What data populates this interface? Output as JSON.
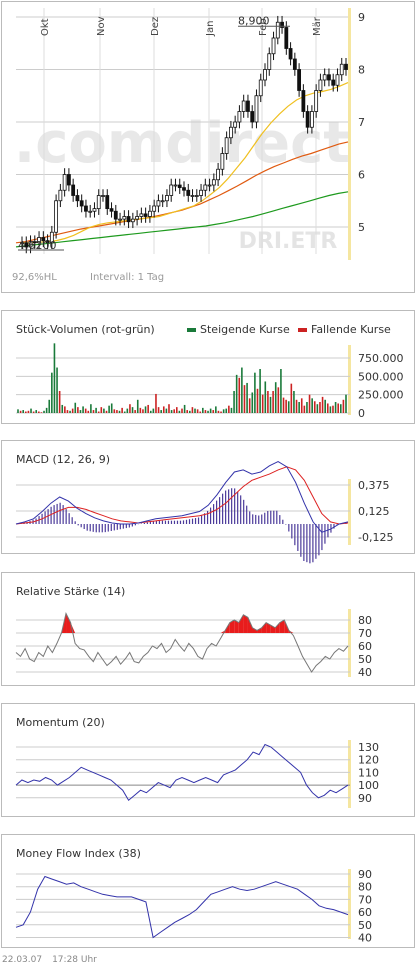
{
  "chart_data": [
    {
      "type": "candlestick",
      "months": [
        "Okt",
        "Nov",
        "Dez",
        "Jan",
        "Feb",
        "Mär"
      ],
      "ylim": [
        4.5,
        9.2
      ],
      "yticks": [
        "5",
        "6",
        "7",
        "8",
        "9"
      ],
      "watermark": ".comdirect",
      "symbol": "DRI.ETR",
      "high_label": "8,900",
      "low_label": "4,6200",
      "high_value": 8.9,
      "low_value": 4.62,
      "info_range": "92,6%HL",
      "info_interval": "Intervall: 1 Tag",
      "price": [
        4.7,
        4.62,
        4.72,
        4.7,
        4.8,
        4.74,
        4.7,
        4.9,
        5.5,
        5.7,
        6.0,
        5.8,
        5.6,
        5.5,
        5.4,
        5.3,
        5.3,
        5.35,
        5.6,
        5.6,
        5.35,
        5.3,
        5.15,
        5.15,
        5.2,
        5.1,
        5.15,
        5.2,
        5.25,
        5.2,
        5.3,
        5.4,
        5.5,
        5.5,
        5.6,
        5.8,
        5.8,
        5.75,
        5.7,
        5.6,
        5.6,
        5.6,
        5.7,
        5.8,
        5.8,
        5.9,
        6.1,
        6.4,
        6.7,
        6.9,
        7.0,
        7.2,
        7.4,
        7.2,
        7.0,
        7.5,
        7.8,
        8.0,
        8.3,
        8.6,
        8.9,
        8.8,
        8.4,
        8.2,
        8.0,
        7.6,
        7.2,
        6.9,
        7.2,
        7.6,
        7.8,
        7.9,
        7.8,
        7.7,
        7.9,
        8.1,
        8.0
      ],
      "sma38": [
        4.7,
        4.7,
        4.71,
        4.72,
        4.74,
        4.78,
        4.84,
        4.92,
        5.0,
        5.05,
        5.08,
        5.1,
        5.12,
        5.14,
        5.16,
        5.18,
        5.2,
        5.25,
        5.3,
        5.35,
        5.4,
        5.5,
        5.62,
        5.75,
        5.92,
        6.12,
        6.32,
        6.55,
        6.78,
        6.98,
        7.15,
        7.3,
        7.42,
        7.5,
        7.55,
        7.58,
        7.62,
        7.68,
        7.75
      ],
      "sma100": [
        4.7,
        4.72,
        4.76,
        4.8,
        4.84,
        4.88,
        4.92,
        4.96,
        4.99,
        5.02,
        5.05,
        5.08,
        5.11,
        5.14,
        5.17,
        5.2,
        5.24,
        5.28,
        5.32,
        5.38,
        5.44,
        5.52,
        5.6,
        5.69,
        5.78,
        5.88,
        5.98,
        6.07,
        6.15,
        6.22,
        6.29,
        6.35,
        6.4,
        6.46,
        6.52,
        6.58,
        6.62
      ],
      "sma200": [
        4.62,
        4.64,
        4.66,
        4.68,
        4.7,
        4.72,
        4.74,
        4.76,
        4.78,
        4.8,
        4.82,
        4.84,
        4.86,
        4.88,
        4.9,
        4.92,
        4.94,
        4.96,
        4.98,
        5.0,
        5.02,
        5.05,
        5.08,
        5.12,
        5.16,
        5.2,
        5.25,
        5.3,
        5.35,
        5.4,
        5.45,
        5.5,
        5.55,
        5.6,
        5.64,
        5.67
      ]
    },
    {
      "type": "bar",
      "title": "Stück-Volumen (rot-grün)",
      "legend": [
        "Steigende Kurse",
        "Fallende Kurse"
      ],
      "colors": {
        "up": "#1a7a3a",
        "down": "#cc2222"
      },
      "yticks": [
        "750.000",
        "500.000",
        "250.000",
        "0"
      ],
      "ylim": [
        0,
        1000000
      ],
      "values": [
        50000,
        30000,
        40000,
        20000,
        30000,
        60000,
        20000,
        40000,
        20000,
        10000,
        30000,
        70000,
        180000,
        550000,
        950000,
        620000,
        300000,
        110000,
        90000,
        40000,
        30000,
        60000,
        140000,
        80000,
        40000,
        90000,
        60000,
        30000,
        120000,
        40000,
        70000,
        20000,
        80000,
        60000,
        30000,
        100000,
        130000,
        50000,
        40000,
        30000,
        70000,
        20000,
        60000,
        120000,
        80000,
        40000,
        180000,
        70000,
        50000,
        90000,
        110000,
        30000,
        60000,
        260000,
        80000,
        40000,
        90000,
        60000,
        120000,
        40000,
        50000,
        80000,
        30000,
        60000,
        110000,
        40000,
        30000,
        80000,
        60000,
        50000,
        20000,
        70000,
        40000,
        30000,
        60000,
        40000,
        90000,
        30000,
        20000,
        50000,
        60000,
        100000,
        70000,
        300000,
        520000,
        480000,
        620000,
        380000,
        410000,
        200000,
        280000,
        550000,
        330000,
        600000,
        250000,
        430000,
        300000,
        220000,
        300000,
        420000,
        350000,
        600000,
        210000,
        180000,
        160000,
        400000,
        300000,
        180000,
        150000,
        200000,
        100000,
        150000,
        250000,
        200000,
        160000,
        120000,
        150000,
        220000,
        180000,
        130000,
        90000,
        100000,
        150000,
        130000,
        120000,
        180000,
        250000
      ],
      "ups": [
        1,
        0,
        1,
        0,
        0,
        1,
        0,
        1,
        0,
        0,
        1,
        1,
        1,
        1,
        1,
        1,
        0,
        1,
        0,
        0,
        1,
        0,
        1,
        0,
        1,
        1,
        0,
        0,
        1,
        0,
        1,
        0,
        0,
        1,
        0,
        1,
        1,
        0,
        0,
        1,
        0,
        1,
        1,
        0,
        1,
        0,
        1,
        0,
        0,
        1,
        0,
        1,
        1,
        0,
        0,
        1,
        0,
        1,
        0,
        1,
        0,
        0,
        1,
        0,
        1,
        0,
        1,
        0,
        1,
        0,
        0,
        1,
        0,
        1,
        1,
        0,
        1,
        0,
        0,
        1,
        1,
        0,
        1,
        1,
        1,
        0,
        1,
        0,
        1,
        0,
        1,
        1,
        0,
        1,
        0,
        1,
        0,
        1,
        0,
        1,
        0,
        1,
        0,
        0,
        1,
        0,
        1,
        0,
        1,
        0,
        0,
        1,
        0,
        1,
        0,
        1,
        0,
        0,
        1,
        0,
        1,
        0,
        1,
        0,
        1,
        0,
        1
      ]
    },
    {
      "type": "line",
      "title": "MACD (12, 26, 9)",
      "yticks": [
        "0,375",
        "0,125",
        "-0,125"
      ],
      "ylim": [
        -0.3,
        0.65
      ],
      "macd": [
        0.0,
        0.02,
        0.05,
        0.12,
        0.2,
        0.26,
        0.22,
        0.15,
        0.1,
        0.06,
        0.03,
        0.01,
        0.0,
        0.0,
        0.01,
        0.03,
        0.05,
        0.06,
        0.07,
        0.08,
        0.1,
        0.12,
        0.18,
        0.28,
        0.4,
        0.5,
        0.52,
        0.48,
        0.5,
        0.56,
        0.6,
        0.55,
        0.4,
        0.2,
        0.02,
        -0.08,
        -0.05,
        0.0,
        0.02
      ],
      "signal": [
        0.0,
        0.01,
        0.02,
        0.05,
        0.09,
        0.13,
        0.16,
        0.16,
        0.14,
        0.11,
        0.08,
        0.05,
        0.03,
        0.02,
        0.01,
        0.02,
        0.03,
        0.04,
        0.05,
        0.06,
        0.07,
        0.08,
        0.1,
        0.14,
        0.2,
        0.28,
        0.36,
        0.42,
        0.45,
        0.48,
        0.52,
        0.55,
        0.52,
        0.42,
        0.26,
        0.1,
        0.02,
        0.0,
        0.01
      ]
    },
    {
      "type": "line",
      "title": "Relative Stärke (14)",
      "yticks": [
        "80",
        "70",
        "60",
        "50",
        "40"
      ],
      "ylim": [
        35,
        90
      ],
      "threshold": 70,
      "values": [
        55,
        52,
        58,
        50,
        48,
        55,
        52,
        60,
        55,
        62,
        70,
        85,
        78,
        62,
        58,
        57,
        52,
        48,
        55,
        50,
        45,
        48,
        52,
        46,
        50,
        55,
        48,
        47,
        52,
        55,
        60,
        58,
        62,
        55,
        58,
        65,
        60,
        56,
        62,
        58,
        52,
        50,
        58,
        62,
        60,
        66,
        72,
        78,
        80,
        78,
        84,
        82,
        74,
        72,
        74,
        78,
        76,
        74,
        78,
        80,
        72,
        68,
        60,
        52,
        46,
        40,
        45,
        48,
        52,
        50,
        55,
        58,
        56,
        60
      ]
    },
    {
      "type": "line",
      "title": "Momentum (20)",
      "yticks": [
        "130",
        "120",
        "110",
        "100",
        "90"
      ],
      "ylim": [
        83,
        135
      ],
      "reference": 100,
      "values": [
        100,
        104,
        102,
        104,
        103,
        106,
        104,
        100,
        103,
        106,
        110,
        114,
        112,
        110,
        108,
        106,
        104,
        100,
        96,
        88,
        92,
        96,
        94,
        98,
        102,
        100,
        98,
        104,
        106,
        104,
        102,
        104,
        106,
        104,
        102,
        108,
        110,
        112,
        116,
        120,
        126,
        124,
        132,
        130,
        126,
        122,
        118,
        114,
        110,
        100,
        94,
        90,
        92,
        96,
        94,
        97,
        100
      ]
    },
    {
      "type": "line",
      "title": "Money Flow Index (38)",
      "yticks": [
        "90",
        "80",
        "70",
        "60",
        "50",
        "40"
      ],
      "ylim": [
        35,
        95
      ],
      "values": [
        48,
        50,
        60,
        78,
        88,
        86,
        84,
        82,
        83,
        80,
        78,
        76,
        74,
        73,
        72,
        72,
        72,
        70,
        68,
        40,
        44,
        48,
        52,
        55,
        58,
        62,
        68,
        74,
        76,
        78,
        80,
        78,
        77,
        78,
        80,
        82,
        84,
        82,
        80,
        78,
        74,
        70,
        65,
        63,
        62,
        60,
        58
      ]
    }
  ],
  "footer": {
    "date": "22.03.07",
    "time": "17:28 Uhr"
  },
  "colors": {
    "candle": "#111111",
    "sma38": "#f0c020",
    "sma100": "#e05a10",
    "sma200": "#1e9a1e",
    "macd": "#3333aa",
    "signal": "#dd2222",
    "highlight": "#f5e6a0",
    "grid": "#cccccc",
    "rsi_fill": "#e81c1c"
  }
}
